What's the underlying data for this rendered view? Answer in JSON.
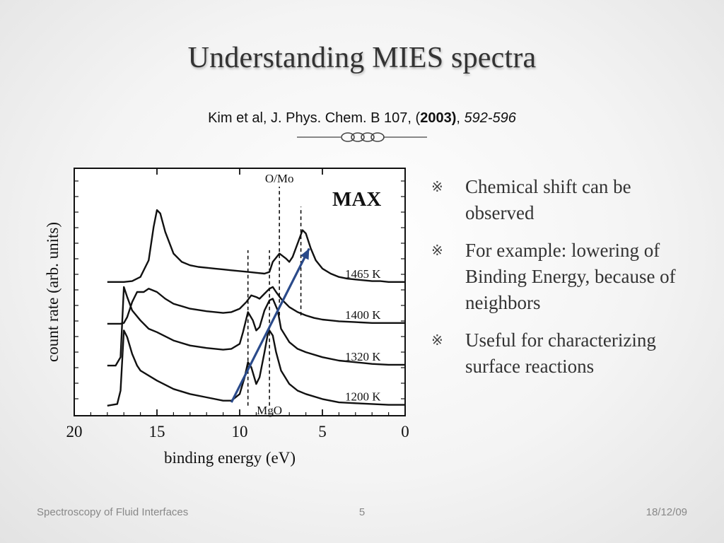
{
  "slide": {
    "title": "Understanding MIES spectra",
    "citation": {
      "authors_journal": "Kim et al, J. Phys. Chem. B 107, (",
      "year": "2003)",
      "separator": ", ",
      "pages": "592-596"
    },
    "bullets": [
      {
        "icon": "reference-mark-icon",
        "text": "Chemical shift can be observed"
      },
      {
        "icon": "reference-mark-icon",
        "text": "For example: lowering of Binding Energy, because of neighbors"
      },
      {
        "icon": "reference-mark-icon",
        "text": "Useful for characterizing surface reactions"
      }
    ],
    "footer": {
      "left": "Spectroscopy of Fluid Interfaces",
      "page": "5",
      "date": "18/12/09"
    }
  },
  "chart_data": {
    "type": "line",
    "title": "",
    "xlabel": "binding energy (eV)",
    "ylabel": "count rate (arb. units)",
    "x_ticks": [
      20,
      15,
      10,
      5,
      0
    ],
    "xlim": [
      20,
      0
    ],
    "x_reversed": true,
    "grid": false,
    "max_label": "MAX",
    "arrow": {
      "from": [
        10.5,
        0.3
      ],
      "to": [
        5.8,
        9.5
      ],
      "color": "#2a4a8a"
    },
    "series": [
      {
        "name": "1465 K",
        "baseline": 7.5,
        "x": [
          18.0,
          17.0,
          16.5,
          16.0,
          15.5,
          15.2,
          15.0,
          14.8,
          14.5,
          14.0,
          13.5,
          13.0,
          12.5,
          12.0,
          11.5,
          11.0,
          10.5,
          10.0,
          9.5,
          9.0,
          8.5,
          8.2,
          8.0,
          7.6,
          7.2,
          7.0,
          6.8,
          6.5,
          6.2,
          6.0,
          5.7,
          5.4,
          5.0,
          4.5,
          4.0,
          3.5,
          3.0,
          2.5,
          2.0,
          1.5,
          1.0,
          0.5,
          0.0
        ],
        "y": [
          7.5,
          7.5,
          7.55,
          7.8,
          8.8,
          10.8,
          11.8,
          11.6,
          10.5,
          9.2,
          8.7,
          8.5,
          8.4,
          8.35,
          8.3,
          8.25,
          8.2,
          8.15,
          8.1,
          8.05,
          8.0,
          8.1,
          8.7,
          9.2,
          8.9,
          8.7,
          9.0,
          9.8,
          10.6,
          10.4,
          9.5,
          8.8,
          8.3,
          8.0,
          7.8,
          7.7,
          7.65,
          7.6,
          7.55,
          7.55,
          7.5,
          7.5,
          7.5
        ]
      },
      {
        "name": "1400 K",
        "baseline": 5.05,
        "x": [
          18.0,
          17.2,
          17.0,
          16.8,
          16.5,
          16.2,
          15.8,
          15.5,
          15.0,
          14.5,
          14.0,
          13.0,
          12.0,
          11.0,
          10.5,
          10.0,
          9.6,
          9.3,
          9.0,
          8.8,
          8.5,
          8.2,
          8.0,
          7.8,
          7.5,
          7.0,
          6.5,
          6.0,
          5.5,
          5.0,
          4.5,
          4.0,
          3.0,
          2.0,
          1.0,
          0.0
        ],
        "y": [
          5.0,
          5.0,
          5.05,
          5.4,
          6.3,
          6.9,
          6.9,
          7.1,
          6.9,
          6.5,
          6.2,
          5.9,
          5.75,
          5.65,
          5.7,
          5.9,
          6.3,
          6.7,
          6.6,
          6.5,
          6.8,
          7.1,
          7.2,
          6.9,
          6.5,
          6.0,
          5.7,
          5.5,
          5.35,
          5.25,
          5.2,
          5.15,
          5.1,
          5.05,
          5.05,
          5.05
        ]
      },
      {
        "name": "1320 K",
        "baseline": 2.55,
        "x": [
          18.0,
          17.5,
          17.2,
          17.0,
          16.8,
          16.5,
          16.0,
          15.5,
          15.0,
          14.0,
          13.0,
          12.0,
          11.0,
          10.5,
          10.0,
          9.8,
          9.5,
          9.2,
          9.0,
          8.8,
          8.5,
          8.2,
          8.0,
          7.7,
          7.5,
          7.0,
          6.5,
          6.0,
          5.0,
          4.0,
          3.0,
          2.0,
          1.0,
          0.0
        ],
        "y": [
          2.5,
          2.5,
          3.0,
          7.2,
          6.6,
          5.8,
          5.2,
          4.7,
          4.5,
          4.0,
          3.7,
          3.55,
          3.45,
          3.5,
          3.8,
          4.5,
          5.7,
          5.2,
          4.6,
          4.8,
          5.8,
          6.4,
          6.5,
          5.8,
          4.7,
          3.9,
          3.5,
          3.3,
          3.0,
          2.8,
          2.7,
          2.6,
          2.55,
          2.55
        ]
      },
      {
        "name": "1200 K",
        "baseline": 0.15,
        "x": [
          18.0,
          17.4,
          17.2,
          17.0,
          16.8,
          16.5,
          16.2,
          16.0,
          15.0,
          14.0,
          13.0,
          12.0,
          11.0,
          10.5,
          10.0,
          9.7,
          9.5,
          9.3,
          9.0,
          8.8,
          8.5,
          8.3,
          8.2,
          8.0,
          7.8,
          7.5,
          7.0,
          6.5,
          6.0,
          5.0,
          4.0,
          3.0,
          2.0,
          1.0,
          0.0
        ],
        "y": [
          0.1,
          0.2,
          1.0,
          4.6,
          4.2,
          3.2,
          2.5,
          2.2,
          1.6,
          1.1,
          0.8,
          0.6,
          0.4,
          0.4,
          0.8,
          1.8,
          2.7,
          2.4,
          1.4,
          1.8,
          3.3,
          4.4,
          4.6,
          4.3,
          3.3,
          2.2,
          1.4,
          1.0,
          0.8,
          0.5,
          0.3,
          0.25,
          0.2,
          0.15,
          0.15
        ]
      }
    ],
    "markers": [
      {
        "x": 9.5,
        "label": "",
        "y_from": 0.1,
        "y_to": 9.4
      },
      {
        "x": 8.2,
        "label": "MgO",
        "y_from": 0.1,
        "y_to": 9.4
      },
      {
        "x": 7.6,
        "label": "O/Mo",
        "y_from": 5.5,
        "y_to": 13.2
      },
      {
        "x": 6.3,
        "label": "",
        "y_from": 5.5,
        "y_to": 12.0
      }
    ]
  }
}
